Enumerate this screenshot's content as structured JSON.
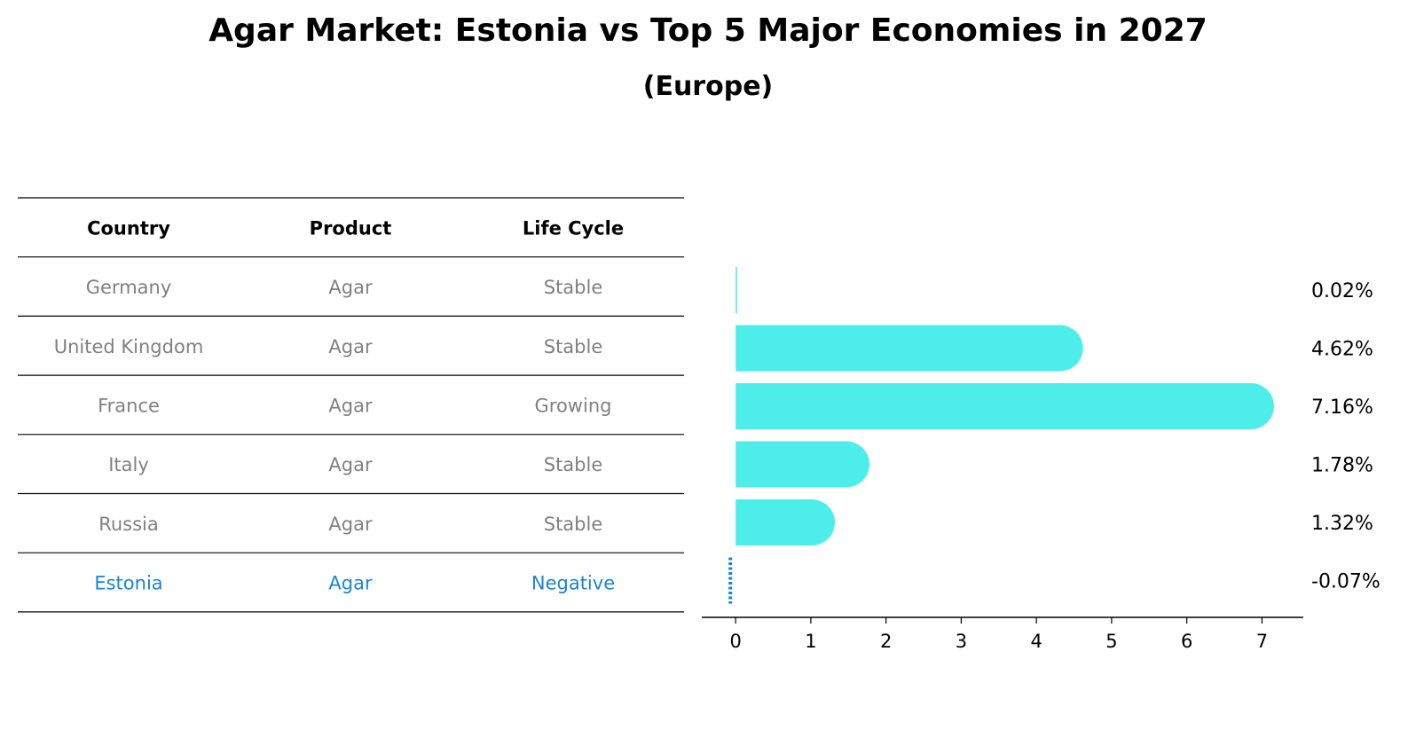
{
  "title": "Agar Market: Estonia vs Top 5 Major Economies in 2027",
  "subtitle": "(Europe)",
  "colors": {
    "bar": "#4DEEEA",
    "highlight": "#1A85D4",
    "row_text": "#808080",
    "header_text": "#000000"
  },
  "table": {
    "columns": [
      "Country",
      "Product",
      "Life Cycle"
    ],
    "rows": [
      {
        "country": "Germany",
        "product": "Agar",
        "life_cycle": "Stable",
        "highlight": false
      },
      {
        "country": "United Kingdom",
        "product": "Agar",
        "life_cycle": "Stable",
        "highlight": false
      },
      {
        "country": "France",
        "product": "Agar",
        "life_cycle": "Growing",
        "highlight": false
      },
      {
        "country": "Italy",
        "product": "Agar",
        "life_cycle": "Stable",
        "highlight": false
      },
      {
        "country": "Russia",
        "product": "Agar",
        "life_cycle": "Stable",
        "highlight": false
      },
      {
        "country": "Estonia",
        "product": "Agar",
        "life_cycle": "Negative",
        "highlight": true
      }
    ]
  },
  "chart_data": {
    "type": "bar",
    "orientation": "horizontal",
    "categories": [
      "Germany",
      "United Kingdom",
      "France",
      "Italy",
      "Russia",
      "Estonia"
    ],
    "values": [
      0.02,
      4.62,
      7.16,
      1.78,
      1.32,
      -0.07
    ],
    "labels": [
      "0.02%",
      "4.62%",
      "7.16%",
      "1.78%",
      "1.32%",
      "-0.07%"
    ],
    "xticks": [
      0,
      1,
      2,
      3,
      4,
      5,
      6,
      7
    ],
    "xlim": [
      -0.45,
      7.55
    ],
    "grid": false,
    "legend": "none"
  }
}
